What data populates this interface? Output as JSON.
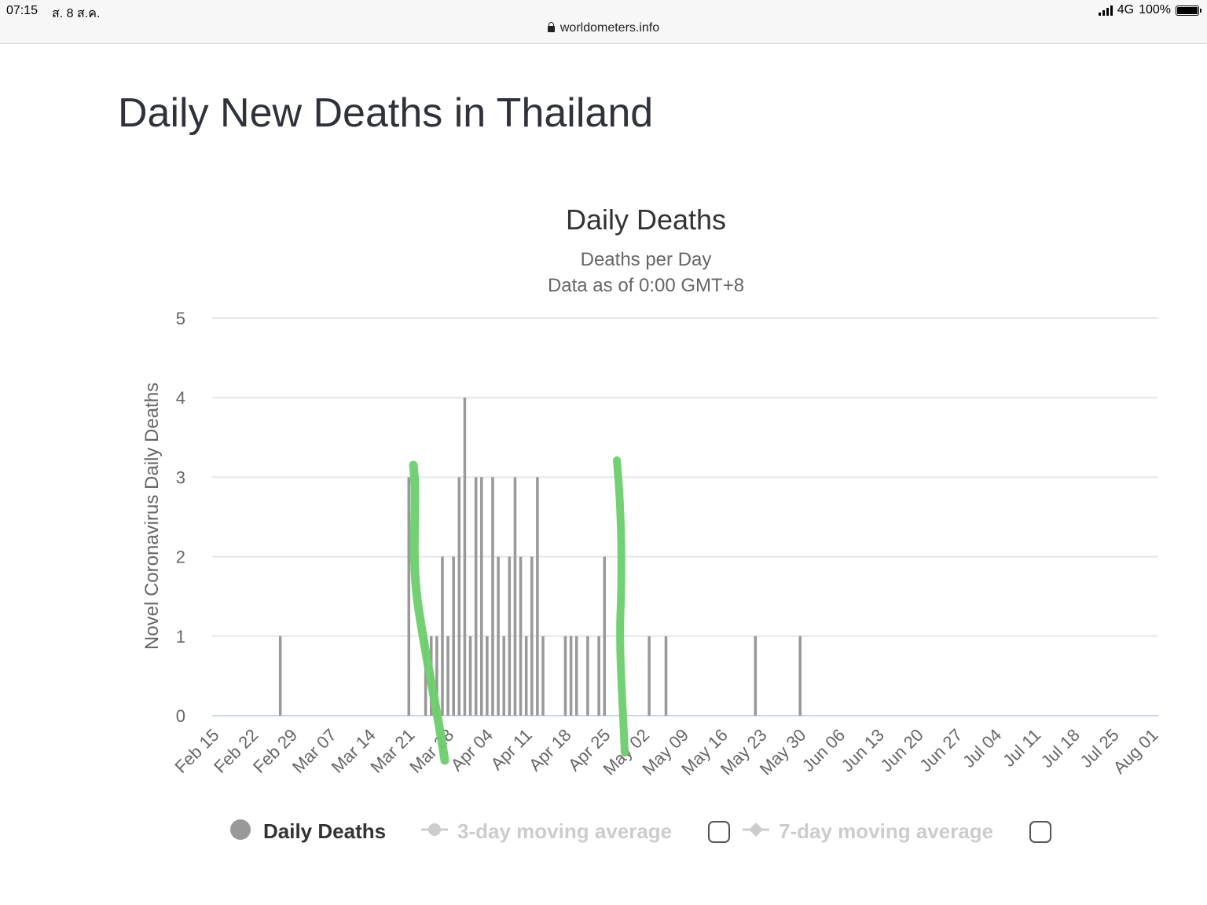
{
  "status_bar": {
    "time": "07:15",
    "date": "ส. 8 ส.ค.",
    "network": "4G",
    "battery": "100%",
    "battery_level": 1.0,
    "url": "worldometers.info"
  },
  "page_title": "Daily New Deaths in Thailand",
  "chart_data": {
    "type": "bar",
    "title": "Daily Deaths",
    "subtitle_lines": [
      "Deaths per Day",
      "Data as of 0:00 GMT+8"
    ],
    "ylabel": "Novel Coronavirus Daily Deaths",
    "xlabel": "",
    "ylim": [
      0,
      5
    ],
    "yticks": [
      0,
      1,
      2,
      3,
      4,
      5
    ],
    "x_start": "2020-02-15",
    "x_end": "2020-08-07",
    "xticks": [
      "Feb 15",
      "Feb 22",
      "Feb 29",
      "Mar 07",
      "Mar 14",
      "Mar 21",
      "Mar 28",
      "Apr 04",
      "Apr 11",
      "Apr 18",
      "Apr 25",
      "May 02",
      "May 09",
      "May 16",
      "May 23",
      "May 30",
      "Jun 06",
      "Jun 13",
      "Jun 20",
      "Jun 27",
      "Jul 04",
      "Jul 11",
      "Jul 18",
      "Jul 25",
      "Aug 01"
    ],
    "grid": true,
    "bar_color": "#999999",
    "series": [
      {
        "name": "Daily Deaths",
        "points": [
          {
            "date": "2020-03-01",
            "value": 1
          },
          {
            "date": "2020-03-24",
            "value": 3
          },
          {
            "date": "2020-03-27",
            "value": 1
          },
          {
            "date": "2020-03-28",
            "value": 1
          },
          {
            "date": "2020-03-29",
            "value": 1
          },
          {
            "date": "2020-03-30",
            "value": 2
          },
          {
            "date": "2020-03-31",
            "value": 1
          },
          {
            "date": "2020-04-01",
            "value": 2
          },
          {
            "date": "2020-04-02",
            "value": 3
          },
          {
            "date": "2020-04-03",
            "value": 4
          },
          {
            "date": "2020-04-04",
            "value": 1
          },
          {
            "date": "2020-04-05",
            "value": 3
          },
          {
            "date": "2020-04-06",
            "value": 3
          },
          {
            "date": "2020-04-07",
            "value": 1
          },
          {
            "date": "2020-04-08",
            "value": 3
          },
          {
            "date": "2020-04-09",
            "value": 2
          },
          {
            "date": "2020-04-10",
            "value": 1
          },
          {
            "date": "2020-04-11",
            "value": 2
          },
          {
            "date": "2020-04-12",
            "value": 3
          },
          {
            "date": "2020-04-13",
            "value": 2
          },
          {
            "date": "2020-04-14",
            "value": 1
          },
          {
            "date": "2020-04-15",
            "value": 2
          },
          {
            "date": "2020-04-16",
            "value": 3
          },
          {
            "date": "2020-04-17",
            "value": 1
          },
          {
            "date": "2020-04-21",
            "value": 1
          },
          {
            "date": "2020-04-22",
            "value": 1
          },
          {
            "date": "2020-04-23",
            "value": 1
          },
          {
            "date": "2020-04-25",
            "value": 1
          },
          {
            "date": "2020-04-27",
            "value": 1
          },
          {
            "date": "2020-04-28",
            "value": 2
          },
          {
            "date": "2020-05-06",
            "value": 1
          },
          {
            "date": "2020-05-09",
            "value": 1
          },
          {
            "date": "2020-05-25",
            "value": 1
          },
          {
            "date": "2020-06-02",
            "value": 1
          }
        ]
      }
    ],
    "legend": {
      "placement": "bottom",
      "items": [
        {
          "label": "Daily Deaths",
          "active": true,
          "color": "#999999"
        },
        {
          "label": "3-day moving average",
          "active": false,
          "color": "#cccccc"
        },
        {
          "label": "7-day moving average",
          "active": false,
          "color": "#cccccc"
        }
      ]
    },
    "annotations": {
      "type": "hand-drawn green marker strokes",
      "color": "#6ccf6c"
    }
  }
}
